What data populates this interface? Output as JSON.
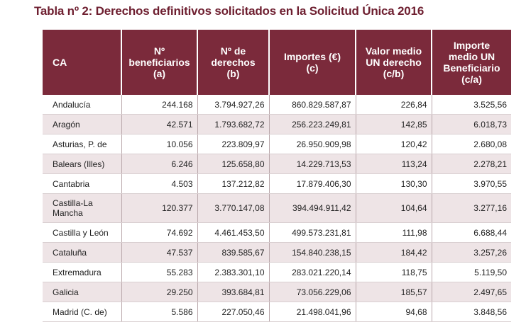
{
  "title": "Tabla nº 2: Derechos definitivos solicitados en la Solicitud Única 2016",
  "header": {
    "ca": "CA",
    "beneficiarios": [
      "Nº",
      "beneficiarios",
      "(a)"
    ],
    "derechos": [
      "Nº de",
      "derechos",
      "(b)"
    ],
    "importes": [
      "Importes (€)",
      "(c)"
    ],
    "valor_medio": [
      "Valor medio",
      "UN derecho",
      "(c/b)"
    ],
    "importe_medio": [
      "Importe",
      "medio UN",
      "Beneficiario",
      "(c/a)"
    ]
  },
  "rows": [
    {
      "ca": "Andalucía",
      "beneficiarios": "244.168",
      "derechos": "3.794.927,26",
      "importes": "860.829.587,87",
      "valor_medio": "226,84",
      "importe_medio": "3.525,56"
    },
    {
      "ca": "Aragón",
      "beneficiarios": "42.571",
      "derechos": "1.793.682,72",
      "importes": "256.223.249,81",
      "valor_medio": "142,85",
      "importe_medio": "6.018,73"
    },
    {
      "ca": "Asturias, P. de",
      "beneficiarios": "10.056",
      "derechos": "223.809,97",
      "importes": "26.950.909,98",
      "valor_medio": "120,42",
      "importe_medio": "2.680,08"
    },
    {
      "ca": "Balears (Illes)",
      "beneficiarios": "6.246",
      "derechos": "125.658,80",
      "importes": "14.229.713,53",
      "valor_medio": "113,24",
      "importe_medio": "2.278,21"
    },
    {
      "ca": "Cantabria",
      "beneficiarios": "4.503",
      "derechos": "137.212,82",
      "importes": "17.879.406,30",
      "valor_medio": "130,30",
      "importe_medio": "3.970,55"
    },
    {
      "ca": "Castilla-La Mancha",
      "beneficiarios": "120.377",
      "derechos": "3.770.147,08",
      "importes": "394.494.911,42",
      "valor_medio": "104,64",
      "importe_medio": "3.277,16"
    },
    {
      "ca": "Castilla y León",
      "beneficiarios": "74.692",
      "derechos": "4.461.453,50",
      "importes": "499.573.231,81",
      "valor_medio": "111,98",
      "importe_medio": "6.688,44"
    },
    {
      "ca": "Cataluña",
      "beneficiarios": "47.537",
      "derechos": "839.585,67",
      "importes": "154.840.238,15",
      "valor_medio": "184,42",
      "importe_medio": "3.257,26"
    },
    {
      "ca": "Extremadura",
      "beneficiarios": "55.283",
      "derechos": "2.383.301,10",
      "importes": "283.021.220,14",
      "valor_medio": "118,75",
      "importe_medio": "5.119,50"
    },
    {
      "ca": "Galicia",
      "beneficiarios": "29.250",
      "derechos": "393.684,81",
      "importes": "73.056.229,06",
      "valor_medio": "185,57",
      "importe_medio": "2.497,65"
    },
    {
      "ca": "Madrid (C. de)",
      "beneficiarios": "5.586",
      "derechos": "227.050,46",
      "importes": "21.498.041,96",
      "valor_medio": "94,68",
      "importe_medio": "3.848,56"
    }
  ],
  "colors": {
    "header_bg": "#7b2a3b",
    "title": "#6e1f30",
    "stripe": "#eee4e6"
  }
}
